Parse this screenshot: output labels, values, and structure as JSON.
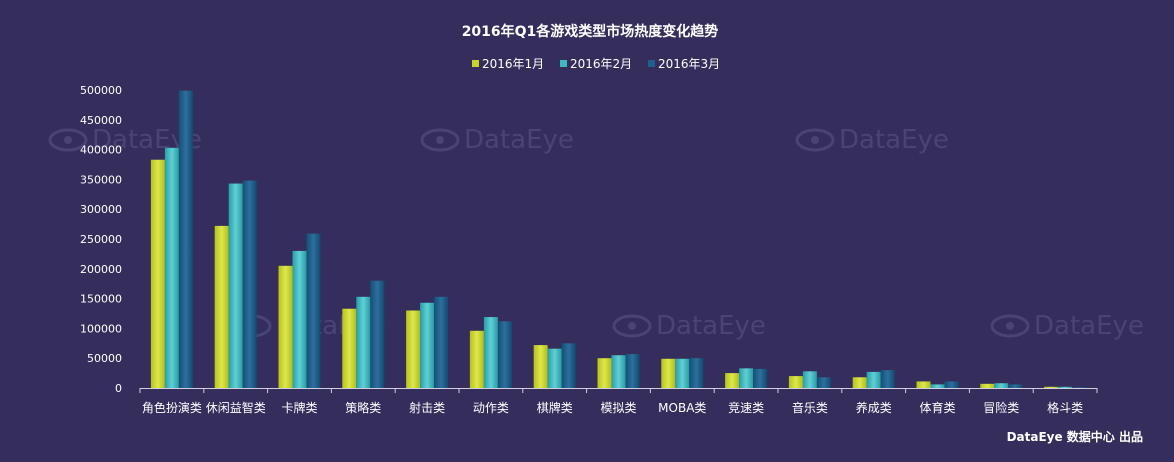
{
  "chart_data": {
    "type": "bar",
    "title": "2016年Q1各游戏类型市场热度变化趋势",
    "xlabel": "",
    "ylabel": "",
    "ylim": [
      0,
      500000
    ],
    "yticks": [
      0,
      50000,
      100000,
      150000,
      200000,
      250000,
      300000,
      350000,
      400000,
      450000,
      500000
    ],
    "grid": false,
    "legend_position": "top-center",
    "categories": [
      "角色扮演类",
      "休闲益智类",
      "卡牌类",
      "策略类",
      "射击类",
      "动作类",
      "棋牌类",
      "模拟类",
      "MOBA类",
      "竞速类",
      "音乐类",
      "养成类",
      "体育类",
      "冒险类",
      "格斗类"
    ],
    "series": [
      {
        "name": "2016年1月",
        "color": "#c8d42a",
        "values": [
          383000,
          272000,
          205000,
          133000,
          130000,
          96000,
          72000,
          50000,
          49000,
          25000,
          20000,
          18000,
          11000,
          7000,
          2000
        ]
      },
      {
        "name": "2016年2月",
        "color": "#3fb8bf",
        "values": [
          403000,
          343000,
          230000,
          153000,
          143000,
          119000,
          66000,
          55000,
          49000,
          33000,
          28000,
          27000,
          6000,
          8000,
          2000
        ]
      },
      {
        "name": "2016年3月",
        "color": "#1f5e8e",
        "values": [
          499000,
          348000,
          259000,
          180000,
          153000,
          112000,
          75000,
          57000,
          50000,
          32000,
          18000,
          30000,
          11000,
          6000,
          1000
        ]
      }
    ]
  },
  "watermark": {
    "text": "DataEye"
  },
  "footer": {
    "credit": "DataEye 数据中心 出品"
  }
}
